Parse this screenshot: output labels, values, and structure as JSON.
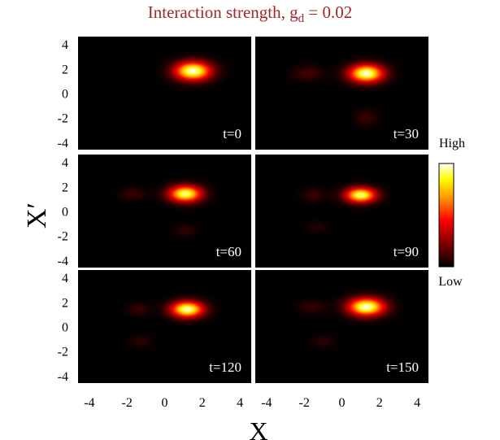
{
  "chart_data": {
    "type": "heatmap",
    "title_prefix": "Interaction strength, g",
    "title_sub": "d",
    "title_suffix": " = 0.02",
    "xlabel": "X",
    "ylabel": "X′",
    "xlim": [
      -4.6,
      4.6
    ],
    "ylim": [
      -4.6,
      4.6
    ],
    "xticks": [
      -4,
      -2,
      0,
      2,
      4
    ],
    "yticks": [
      4,
      2,
      0,
      -2,
      -4
    ],
    "colorbar": {
      "high_label": "High",
      "low_label": "Low",
      "colors": [
        "#000000",
        "#8b0000",
        "#ff0000",
        "#ff8c00",
        "#ffff00",
        "#ffffff"
      ]
    },
    "panels": [
      {
        "label": "t=0",
        "peak": {
          "x": 1.5,
          "y": 1.8,
          "sx": 0.95,
          "sy": 0.75,
          "amp": 1.0
        },
        "ghosts": []
      },
      {
        "label": "t=30",
        "peak": {
          "x": 1.3,
          "y": 1.6,
          "sx": 0.9,
          "sy": 0.72,
          "amp": 1.0
        },
        "ghosts": [
          {
            "x": -1.8,
            "y": 1.6,
            "sx": 0.8,
            "sy": 0.6,
            "amp": 0.12
          },
          {
            "x": 1.3,
            "y": -2.0,
            "sx": 0.6,
            "sy": 0.7,
            "amp": 0.1
          }
        ]
      },
      {
        "label": "t=60",
        "peak": {
          "x": 1.1,
          "y": 1.4,
          "sx": 0.85,
          "sy": 0.65,
          "amp": 0.95
        },
        "ghosts": [
          {
            "x": -1.7,
            "y": 1.4,
            "sx": 0.7,
            "sy": 0.5,
            "amp": 0.1
          },
          {
            "x": 1.1,
            "y": -1.6,
            "sx": 0.6,
            "sy": 0.5,
            "amp": 0.08
          }
        ]
      },
      {
        "label": "t=90",
        "peak": {
          "x": 1.0,
          "y": 1.3,
          "sx": 0.8,
          "sy": 0.6,
          "amp": 0.95
        },
        "ghosts": [
          {
            "x": -1.5,
            "y": 1.3,
            "sx": 0.7,
            "sy": 0.5,
            "amp": 0.1
          },
          {
            "x": -1.3,
            "y": -1.3,
            "sx": 0.6,
            "sy": 0.5,
            "amp": 0.06
          }
        ]
      },
      {
        "label": "t=120",
        "peak": {
          "x": 1.2,
          "y": 1.4,
          "sx": 0.85,
          "sy": 0.65,
          "amp": 0.98
        },
        "ghosts": [
          {
            "x": -1.4,
            "y": 1.4,
            "sx": 0.6,
            "sy": 0.5,
            "amp": 0.1
          },
          {
            "x": -1.3,
            "y": -1.2,
            "sx": 0.6,
            "sy": 0.5,
            "amp": 0.08
          }
        ]
      },
      {
        "label": "t=150",
        "peak": {
          "x": 1.3,
          "y": 1.6,
          "sx": 0.95,
          "sy": 0.72,
          "amp": 1.0
        },
        "ghosts": [
          {
            "x": -1.6,
            "y": 1.6,
            "sx": 0.7,
            "sy": 0.5,
            "amp": 0.1
          },
          {
            "x": -1.0,
            "y": -1.2,
            "sx": 0.6,
            "sy": 0.5,
            "amp": 0.08
          }
        ]
      }
    ]
  }
}
